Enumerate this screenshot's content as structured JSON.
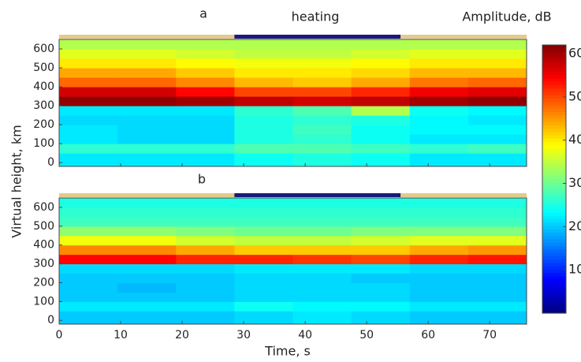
{
  "chart_data": {
    "type": "heatmap",
    "title": "heating",
    "xlabel": "Time, s",
    "ylabel": "Virtual height, km",
    "xlim": [
      0,
      76
    ],
    "xticks": [
      0,
      10,
      20,
      30,
      40,
      50,
      60,
      70
    ],
    "ylim": [
      -20,
      650
    ],
    "yticks": [
      0,
      100,
      200,
      300,
      400,
      500,
      600
    ],
    "xbins": [
      0,
      9.5,
      19,
      28.5,
      38,
      47.5,
      57,
      66.5,
      76
    ],
    "ybins": [
      -20,
      50,
      100,
      150,
      200,
      250,
      300,
      350,
      400,
      450,
      500,
      550,
      600,
      650
    ],
    "heating_span": [
      28.5,
      55.5
    ],
    "colorbar": {
      "label": "Amplitude, dB",
      "clim": [
        0,
        62
      ],
      "ticks": [
        10,
        20,
        30,
        40,
        50,
        60
      ],
      "colormap": "jet"
    },
    "panels": [
      {
        "label": "a",
        "values": [
          [
            22,
            22,
            22,
            24,
            25,
            24,
            22,
            22
          ],
          [
            26,
            26,
            26,
            28,
            28,
            27,
            26,
            27
          ],
          [
            22,
            21,
            21,
            25,
            26,
            24,
            22,
            22
          ],
          [
            22,
            21,
            21,
            25,
            27,
            24,
            23,
            23
          ],
          [
            21,
            21,
            21,
            25,
            26,
            25,
            23,
            22
          ],
          [
            22,
            22,
            22,
            26,
            28,
            34,
            24,
            23
          ],
          [
            61,
            61,
            60,
            58,
            57,
            58,
            60,
            61
          ],
          [
            57,
            57,
            54,
            50,
            50,
            52,
            55,
            56
          ],
          [
            48,
            48,
            46,
            43,
            42,
            44,
            47,
            48
          ],
          [
            44,
            44,
            42,
            40,
            40,
            41,
            43,
            43
          ],
          [
            40,
            40,
            39,
            38,
            38,
            39,
            40,
            40
          ],
          [
            37,
            37,
            36,
            35,
            35,
            36,
            37,
            37
          ],
          [
            34,
            34,
            34,
            34,
            34,
            34,
            34,
            34
          ]
        ]
      },
      {
        "label": "b",
        "values": [
          [
            20,
            20,
            20,
            21,
            22,
            21,
            20,
            20
          ],
          [
            22,
            22,
            22,
            24,
            23,
            23,
            22,
            22
          ],
          [
            20,
            20,
            20,
            21,
            21,
            21,
            20,
            20
          ],
          [
            20,
            19,
            20,
            21,
            21,
            21,
            20,
            20
          ],
          [
            20,
            20,
            20,
            21,
            21,
            20,
            20,
            20
          ],
          [
            21,
            21,
            21,
            22,
            22,
            22,
            21,
            21
          ],
          [
            54,
            54,
            52,
            52,
            51,
            50,
            52,
            53
          ],
          [
            46,
            46,
            44,
            42,
            42,
            42,
            44,
            45
          ],
          [
            38,
            38,
            36,
            35,
            35,
            36,
            37,
            37
          ],
          [
            32,
            32,
            31,
            30,
            30,
            31,
            31,
            31
          ],
          [
            27,
            27,
            27,
            27,
            27,
            27,
            27,
            27
          ],
          [
            26,
            26,
            26,
            26,
            26,
            26,
            26,
            26
          ],
          [
            25,
            25,
            25,
            25,
            25,
            25,
            25,
            25
          ]
        ]
      }
    ]
  }
}
